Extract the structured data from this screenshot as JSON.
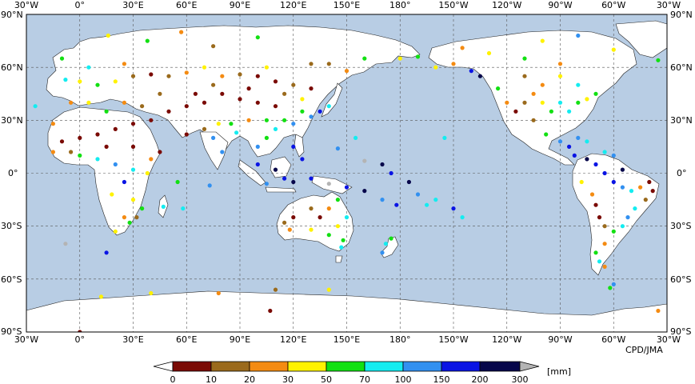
{
  "map": {
    "lon_labels": [
      "30°W",
      "0°",
      "30°E",
      "60°E",
      "90°E",
      "120°E",
      "150°E",
      "180°",
      "150°W",
      "120°W",
      "90°W",
      "60°W",
      "30°W"
    ],
    "lat_labels": [
      "90°N",
      "60°N",
      "30°N",
      "0°",
      "30°S",
      "60°S",
      "90°S"
    ],
    "credit": "CPD/JMA",
    "ocean_color": "#b8cde4",
    "land_color": "#ffffff"
  },
  "legend": {
    "ticks": [
      "0",
      "10",
      "20",
      "30",
      "50",
      "70",
      "100",
      "150",
      "200",
      "300"
    ],
    "unit": "[mm]",
    "colors": [
      "#ffffff",
      "#7a0a04",
      "#9a6a1c",
      "#f48b12",
      "#fff200",
      "#12e012",
      "#14ecf0",
      "#3290f0",
      "#0a14e4",
      "#06064a",
      "#b4b4b4"
    ]
  },
  "stations": [
    {
      "lon": -10,
      "lat": 65,
      "c": 5
    },
    {
      "lon": 0,
      "lat": 52,
      "c": 4
    },
    {
      "lon": 10,
      "lat": 50,
      "c": 5
    },
    {
      "lon": 20,
      "lat": 52,
      "c": 4
    },
    {
      "lon": 30,
      "lat": 55,
      "c": 2
    },
    {
      "lon": 40,
      "lat": 56,
      "c": 1
    },
    {
      "lon": 50,
      "lat": 55,
      "c": 2
    },
    {
      "lon": 60,
      "lat": 57,
      "c": 3
    },
    {
      "lon": 70,
      "lat": 60,
      "c": 4
    },
    {
      "lon": 80,
      "lat": 55,
      "c": 3
    },
    {
      "lon": 90,
      "lat": 56,
      "c": 2
    },
    {
      "lon": 100,
      "lat": 55,
      "c": 1
    },
    {
      "lon": 110,
      "lat": 52,
      "c": 1
    },
    {
      "lon": 120,
      "lat": 50,
      "c": 2
    },
    {
      "lon": 130,
      "lat": 48,
      "c": 1
    },
    {
      "lon": 140,
      "lat": 62,
      "c": 2
    },
    {
      "lon": 160,
      "lat": 65,
      "c": 5
    },
    {
      "lon": 100,
      "lat": 40,
      "c": 1
    },
    {
      "lon": 110,
      "lat": 38,
      "c": 1
    },
    {
      "lon": 90,
      "lat": 42,
      "c": 1
    },
    {
      "lon": 80,
      "lat": 45,
      "c": 1
    },
    {
      "lon": 70,
      "lat": 40,
      "c": 1
    },
    {
      "lon": 60,
      "lat": 38,
      "c": 1
    },
    {
      "lon": 50,
      "lat": 35,
      "c": 1
    },
    {
      "lon": 40,
      "lat": 30,
      "c": 1
    },
    {
      "lon": 30,
      "lat": 28,
      "c": 1
    },
    {
      "lon": 20,
      "lat": 25,
      "c": 1
    },
    {
      "lon": 10,
      "lat": 22,
      "c": 1
    },
    {
      "lon": 0,
      "lat": 20,
      "c": 1
    },
    {
      "lon": -10,
      "lat": 18,
      "c": 1
    },
    {
      "lon": -15,
      "lat": 12,
      "c": 3
    },
    {
      "lon": 0,
      "lat": 10,
      "c": 5
    },
    {
      "lon": 10,
      "lat": 8,
      "c": 6
    },
    {
      "lon": 20,
      "lat": 5,
      "c": 7
    },
    {
      "lon": 30,
      "lat": 2,
      "c": 6
    },
    {
      "lon": 25,
      "lat": -5,
      "c": 8
    },
    {
      "lon": 30,
      "lat": -15,
      "c": 4
    },
    {
      "lon": 25,
      "lat": -25,
      "c": 3
    },
    {
      "lon": 20,
      "lat": -33,
      "c": 4
    },
    {
      "lon": 35,
      "lat": -20,
      "c": 5
    },
    {
      "lon": 47,
      "lat": -19,
      "c": 6
    },
    {
      "lon": 75,
      "lat": 20,
      "c": 7
    },
    {
      "lon": 80,
      "lat": 12,
      "c": 7
    },
    {
      "lon": 88,
      "lat": 23,
      "c": 6
    },
    {
      "lon": 100,
      "lat": 15,
      "c": 7
    },
    {
      "lon": 105,
      "lat": 20,
      "c": 5
    },
    {
      "lon": 110,
      "lat": 25,
      "c": 6
    },
    {
      "lon": 115,
      "lat": 30,
      "c": 5
    },
    {
      "lon": 120,
      "lat": 28,
      "c": 7
    },
    {
      "lon": 125,
      "lat": 35,
      "c": 5
    },
    {
      "lon": 135,
      "lat": 35,
      "c": 8
    },
    {
      "lon": 140,
      "lat": 38,
      "c": 6
    },
    {
      "lon": 130,
      "lat": 32,
      "c": 7
    },
    {
      "lon": 120,
      "lat": 15,
      "c": 8
    },
    {
      "lon": 125,
      "lat": 8,
      "c": 8
    },
    {
      "lon": 110,
      "lat": 2,
      "c": 9
    },
    {
      "lon": 100,
      "lat": 5,
      "c": 8
    },
    {
      "lon": 115,
      "lat": -3,
      "c": 8
    },
    {
      "lon": 105,
      "lat": -6,
      "c": 7
    },
    {
      "lon": 120,
      "lat": -5,
      "c": 9
    },
    {
      "lon": 130,
      "lat": -3,
      "c": 8
    },
    {
      "lon": 140,
      "lat": -6,
      "c": 10
    },
    {
      "lon": 150,
      "lat": -8,
      "c": 8
    },
    {
      "lon": 160,
      "lat": -10,
      "c": 9
    },
    {
      "lon": 170,
      "lat": -15,
      "c": 7
    },
    {
      "lon": 178,
      "lat": -18,
      "c": 8
    },
    {
      "lon": 170,
      "lat": 5,
      "c": 9
    },
    {
      "lon": 160,
      "lat": 7,
      "c": 10
    },
    {
      "lon": 145,
      "lat": 14,
      "c": 7
    },
    {
      "lon": 155,
      "lat": 20,
      "c": 6
    },
    {
      "lon": 175,
      "lat": 0,
      "c": 8
    },
    {
      "lon": 185,
      "lat": -5,
      "c": 9
    },
    {
      "lon": 190,
      "lat": -12,
      "c": 7
    },
    {
      "lon": 195,
      "lat": -18,
      "c": 6
    },
    {
      "lon": 200,
      "lat": -15,
      "c": 6
    },
    {
      "lon": 210,
      "lat": -20,
      "c": 8
    },
    {
      "lon": 205,
      "lat": 20,
      "c": 6
    },
    {
      "lon": 215,
      "lat": -25,
      "c": 6
    },
    {
      "lon": 120,
      "lat": -25,
      "c": 1
    },
    {
      "lon": 130,
      "lat": -20,
      "c": 2
    },
    {
      "lon": 135,
      "lat": -25,
      "c": 1
    },
    {
      "lon": 140,
      "lat": -20,
      "c": 3
    },
    {
      "lon": 145,
      "lat": -15,
      "c": 5
    },
    {
      "lon": 150,
      "lat": -25,
      "c": 6
    },
    {
      "lon": 145,
      "lat": -30,
      "c": 4
    },
    {
      "lon": 140,
      "lat": -35,
      "c": 5
    },
    {
      "lon": 130,
      "lat": -32,
      "c": 4
    },
    {
      "lon": 118,
      "lat": -32,
      "c": 3
    },
    {
      "lon": 115,
      "lat": -28,
      "c": 2
    },
    {
      "lon": 148,
      "lat": -38,
      "c": 5
    },
    {
      "lon": 147,
      "lat": -42,
      "c": 6
    },
    {
      "lon": 172,
      "lat": -40,
      "c": 6
    },
    {
      "lon": 170,
      "lat": -45,
      "c": 7
    },
    {
      "lon": 175,
      "lat": -37,
      "c": 5
    },
    {
      "lon": 200,
      "lat": 60,
      "c": 4
    },
    {
      "lon": 210,
      "lat": 62,
      "c": 3
    },
    {
      "lon": 220,
      "lat": 58,
      "c": 8
    },
    {
      "lon": 225,
      "lat": 55,
      "c": 9
    },
    {
      "lon": 235,
      "lat": 48,
      "c": 5
    },
    {
      "lon": 240,
      "lat": 40,
      "c": 3
    },
    {
      "lon": 245,
      "lat": 35,
      "c": 1
    },
    {
      "lon": 250,
      "lat": 40,
      "c": 2
    },
    {
      "lon": 255,
      "lat": 45,
      "c": 3
    },
    {
      "lon": 260,
      "lat": 40,
      "c": 4
    },
    {
      "lon": 265,
      "lat": 35,
      "c": 5
    },
    {
      "lon": 270,
      "lat": 40,
      "c": 6
    },
    {
      "lon": 275,
      "lat": 35,
      "c": 6
    },
    {
      "lon": 280,
      "lat": 40,
      "c": 5
    },
    {
      "lon": 285,
      "lat": 42,
      "c": 4
    },
    {
      "lon": 290,
      "lat": 45,
      "c": 5
    },
    {
      "lon": 260,
      "lat": 50,
      "c": 3
    },
    {
      "lon": 250,
      "lat": 55,
      "c": 2
    },
    {
      "lon": 270,
      "lat": 55,
      "c": 4
    },
    {
      "lon": 280,
      "lat": 50,
      "c": 6
    },
    {
      "lon": 255,
      "lat": 30,
      "c": 2
    },
    {
      "lon": 262,
      "lat": 22,
      "c": 5
    },
    {
      "lon": 270,
      "lat": 18,
      "c": 7
    },
    {
      "lon": 275,
      "lat": 15,
      "c": 8
    },
    {
      "lon": 280,
      "lat": 20,
      "c": 7
    },
    {
      "lon": 285,
      "lat": 18,
      "c": 6
    },
    {
      "lon": 278,
      "lat": 10,
      "c": 8
    },
    {
      "lon": 285,
      "lat": 8,
      "c": 9
    },
    {
      "lon": 290,
      "lat": 5,
      "c": 8
    },
    {
      "lon": 295,
      "lat": 0,
      "c": 8
    },
    {
      "lon": 300,
      "lat": -5,
      "c": 8
    },
    {
      "lon": 305,
      "lat": -8,
      "c": 7
    },
    {
      "lon": 310,
      "lat": -10,
      "c": 6
    },
    {
      "lon": 315,
      "lat": -8,
      "c": 3
    },
    {
      "lon": 320,
      "lat": -5,
      "c": 1
    },
    {
      "lon": 322,
      "lat": -10,
      "c": 1
    },
    {
      "lon": 318,
      "lat": -15,
      "c": 2
    },
    {
      "lon": 312,
      "lat": -20,
      "c": 6
    },
    {
      "lon": 308,
      "lat": -25,
      "c": 7
    },
    {
      "lon": 305,
      "lat": -30,
      "c": 6
    },
    {
      "lon": 300,
      "lat": -33,
      "c": 5
    },
    {
      "lon": 295,
      "lat": -30,
      "c": 2
    },
    {
      "lon": 292,
      "lat": -25,
      "c": 1
    },
    {
      "lon": 290,
      "lat": -18,
      "c": 1
    },
    {
      "lon": 288,
      "lat": -12,
      "c": 3
    },
    {
      "lon": 282,
      "lat": -5,
      "c": 4
    },
    {
      "lon": 295,
      "lat": -40,
      "c": 3
    },
    {
      "lon": 290,
      "lat": -45,
      "c": 5
    },
    {
      "lon": 292,
      "lat": -50,
      "c": 6
    },
    {
      "lon": 295,
      "lat": -53,
      "c": 3
    },
    {
      "lon": 300,
      "lat": 10,
      "c": 7
    },
    {
      "lon": 295,
      "lat": 12,
      "c": 6
    },
    {
      "lon": 305,
      "lat": 2,
      "c": 9
    },
    {
      "lon": 298,
      "lat": -65,
      "c": 5
    },
    {
      "lon": 300,
      "lat": -63,
      "c": 7
    },
    {
      "lon": 325,
      "lat": 64,
      "c": 5
    },
    {
      "lon": -25,
      "lat": 38,
      "c": 6
    },
    {
      "lon": -15,
      "lat": 28,
      "c": 3
    },
    {
      "lon": 58,
      "lat": -20,
      "c": 6
    },
    {
      "lon": 73,
      "lat": -7,
      "c": 7
    },
    {
      "lon": 55,
      "lat": -5,
      "c": 5
    },
    {
      "lon": 45,
      "lat": 12,
      "c": 1
    },
    {
      "lon": 60,
      "lat": 22,
      "c": 1
    },
    {
      "lon": 105,
      "lat": 60,
      "c": 4
    },
    {
      "lon": 130,
      "lat": 62,
      "c": 2
    },
    {
      "lon": 150,
      "lat": 58,
      "c": 3
    },
    {
      "lon": 180,
      "lat": 65,
      "c": 4
    },
    {
      "lon": 190,
      "lat": 66,
      "c": 5
    },
    {
      "lon": 230,
      "lat": 68,
      "c": 4
    },
    {
      "lon": 250,
      "lat": 65,
      "c": 5
    },
    {
      "lon": 270,
      "lat": 62,
      "c": 3
    },
    {
      "lon": 300,
      "lat": 70,
      "c": 4
    },
    {
      "lon": 110,
      "lat": -66,
      "c": 2
    },
    {
      "lon": 140,
      "lat": -66,
      "c": 4
    },
    {
      "lon": 40,
      "lat": -68,
      "c": 4
    },
    {
      "lon": 78,
      "lat": -68,
      "c": 3
    },
    {
      "lon": 12,
      "lat": -70,
      "c": 4
    },
    {
      "lon": 325,
      "lat": -78,
      "c": 3
    },
    {
      "lon": 107,
      "lat": -78,
      "c": 1
    },
    {
      "lon": 0,
      "lat": -90,
      "c": 1
    },
    {
      "lon": 38,
      "lat": 75,
      "c": 5
    },
    {
      "lon": 57,
      "lat": 80,
      "c": 3
    },
    {
      "lon": 100,
      "lat": 77,
      "c": 5
    },
    {
      "lon": 16,
      "lat": 78,
      "c": 4
    },
    {
      "lon": 260,
      "lat": 75,
      "c": 4
    },
    {
      "lon": 280,
      "lat": 78,
      "c": 7
    },
    {
      "lon": 215,
      "lat": 71,
      "c": 3
    },
    {
      "lon": 75,
      "lat": 72,
      "c": 2
    },
    {
      "lon": -8,
      "lat": -40,
      "c": 10
    },
    {
      "lon": 15,
      "lat": -45,
      "c": 8
    },
    {
      "lon": 15,
      "lat": 35,
      "c": 5
    },
    {
      "lon": 25,
      "lat": 40,
      "c": 3
    },
    {
      "lon": 35,
      "lat": 38,
      "c": 2
    },
    {
      "lon": 5,
      "lat": 40,
      "c": 4
    },
    {
      "lon": -5,
      "lat": 40,
      "c": 3
    },
    {
      "lon": -8,
      "lat": 53,
      "c": 6
    },
    {
      "lon": 5,
      "lat": 60,
      "c": 6
    },
    {
      "lon": 25,
      "lat": 62,
      "c": 3
    },
    {
      "lon": 45,
      "lat": 45,
      "c": 2
    },
    {
      "lon": 65,
      "lat": 45,
      "c": 1
    },
    {
      "lon": 75,
      "lat": 50,
      "c": 2
    },
    {
      "lon": 95,
      "lat": 48,
      "c": 1
    },
    {
      "lon": 115,
      "lat": 45,
      "c": 2
    },
    {
      "lon": 125,
      "lat": 42,
      "c": 4
    },
    {
      "lon": 105,
      "lat": 30,
      "c": 5
    },
    {
      "lon": 95,
      "lat": 30,
      "c": 3
    },
    {
      "lon": 85,
      "lat": 28,
      "c": 5
    },
    {
      "lon": 78,
      "lat": 28,
      "c": 4
    },
    {
      "lon": 70,
      "lat": 25,
      "c": 2
    },
    {
      "lon": 30,
      "lat": 15,
      "c": 1
    },
    {
      "lon": 40,
      "lat": 8,
      "c": 3
    },
    {
      "lon": 38,
      "lat": 0,
      "c": 4
    },
    {
      "lon": 15,
      "lat": 15,
      "c": 1
    },
    {
      "lon": -5,
      "lat": 12,
      "c": 2
    },
    {
      "lon": 18,
      "lat": -12,
      "c": 4
    },
    {
      "lon": 28,
      "lat": -28,
      "c": 5
    },
    {
      "lon": 32,
      "lat": -25,
      "c": 2
    }
  ]
}
